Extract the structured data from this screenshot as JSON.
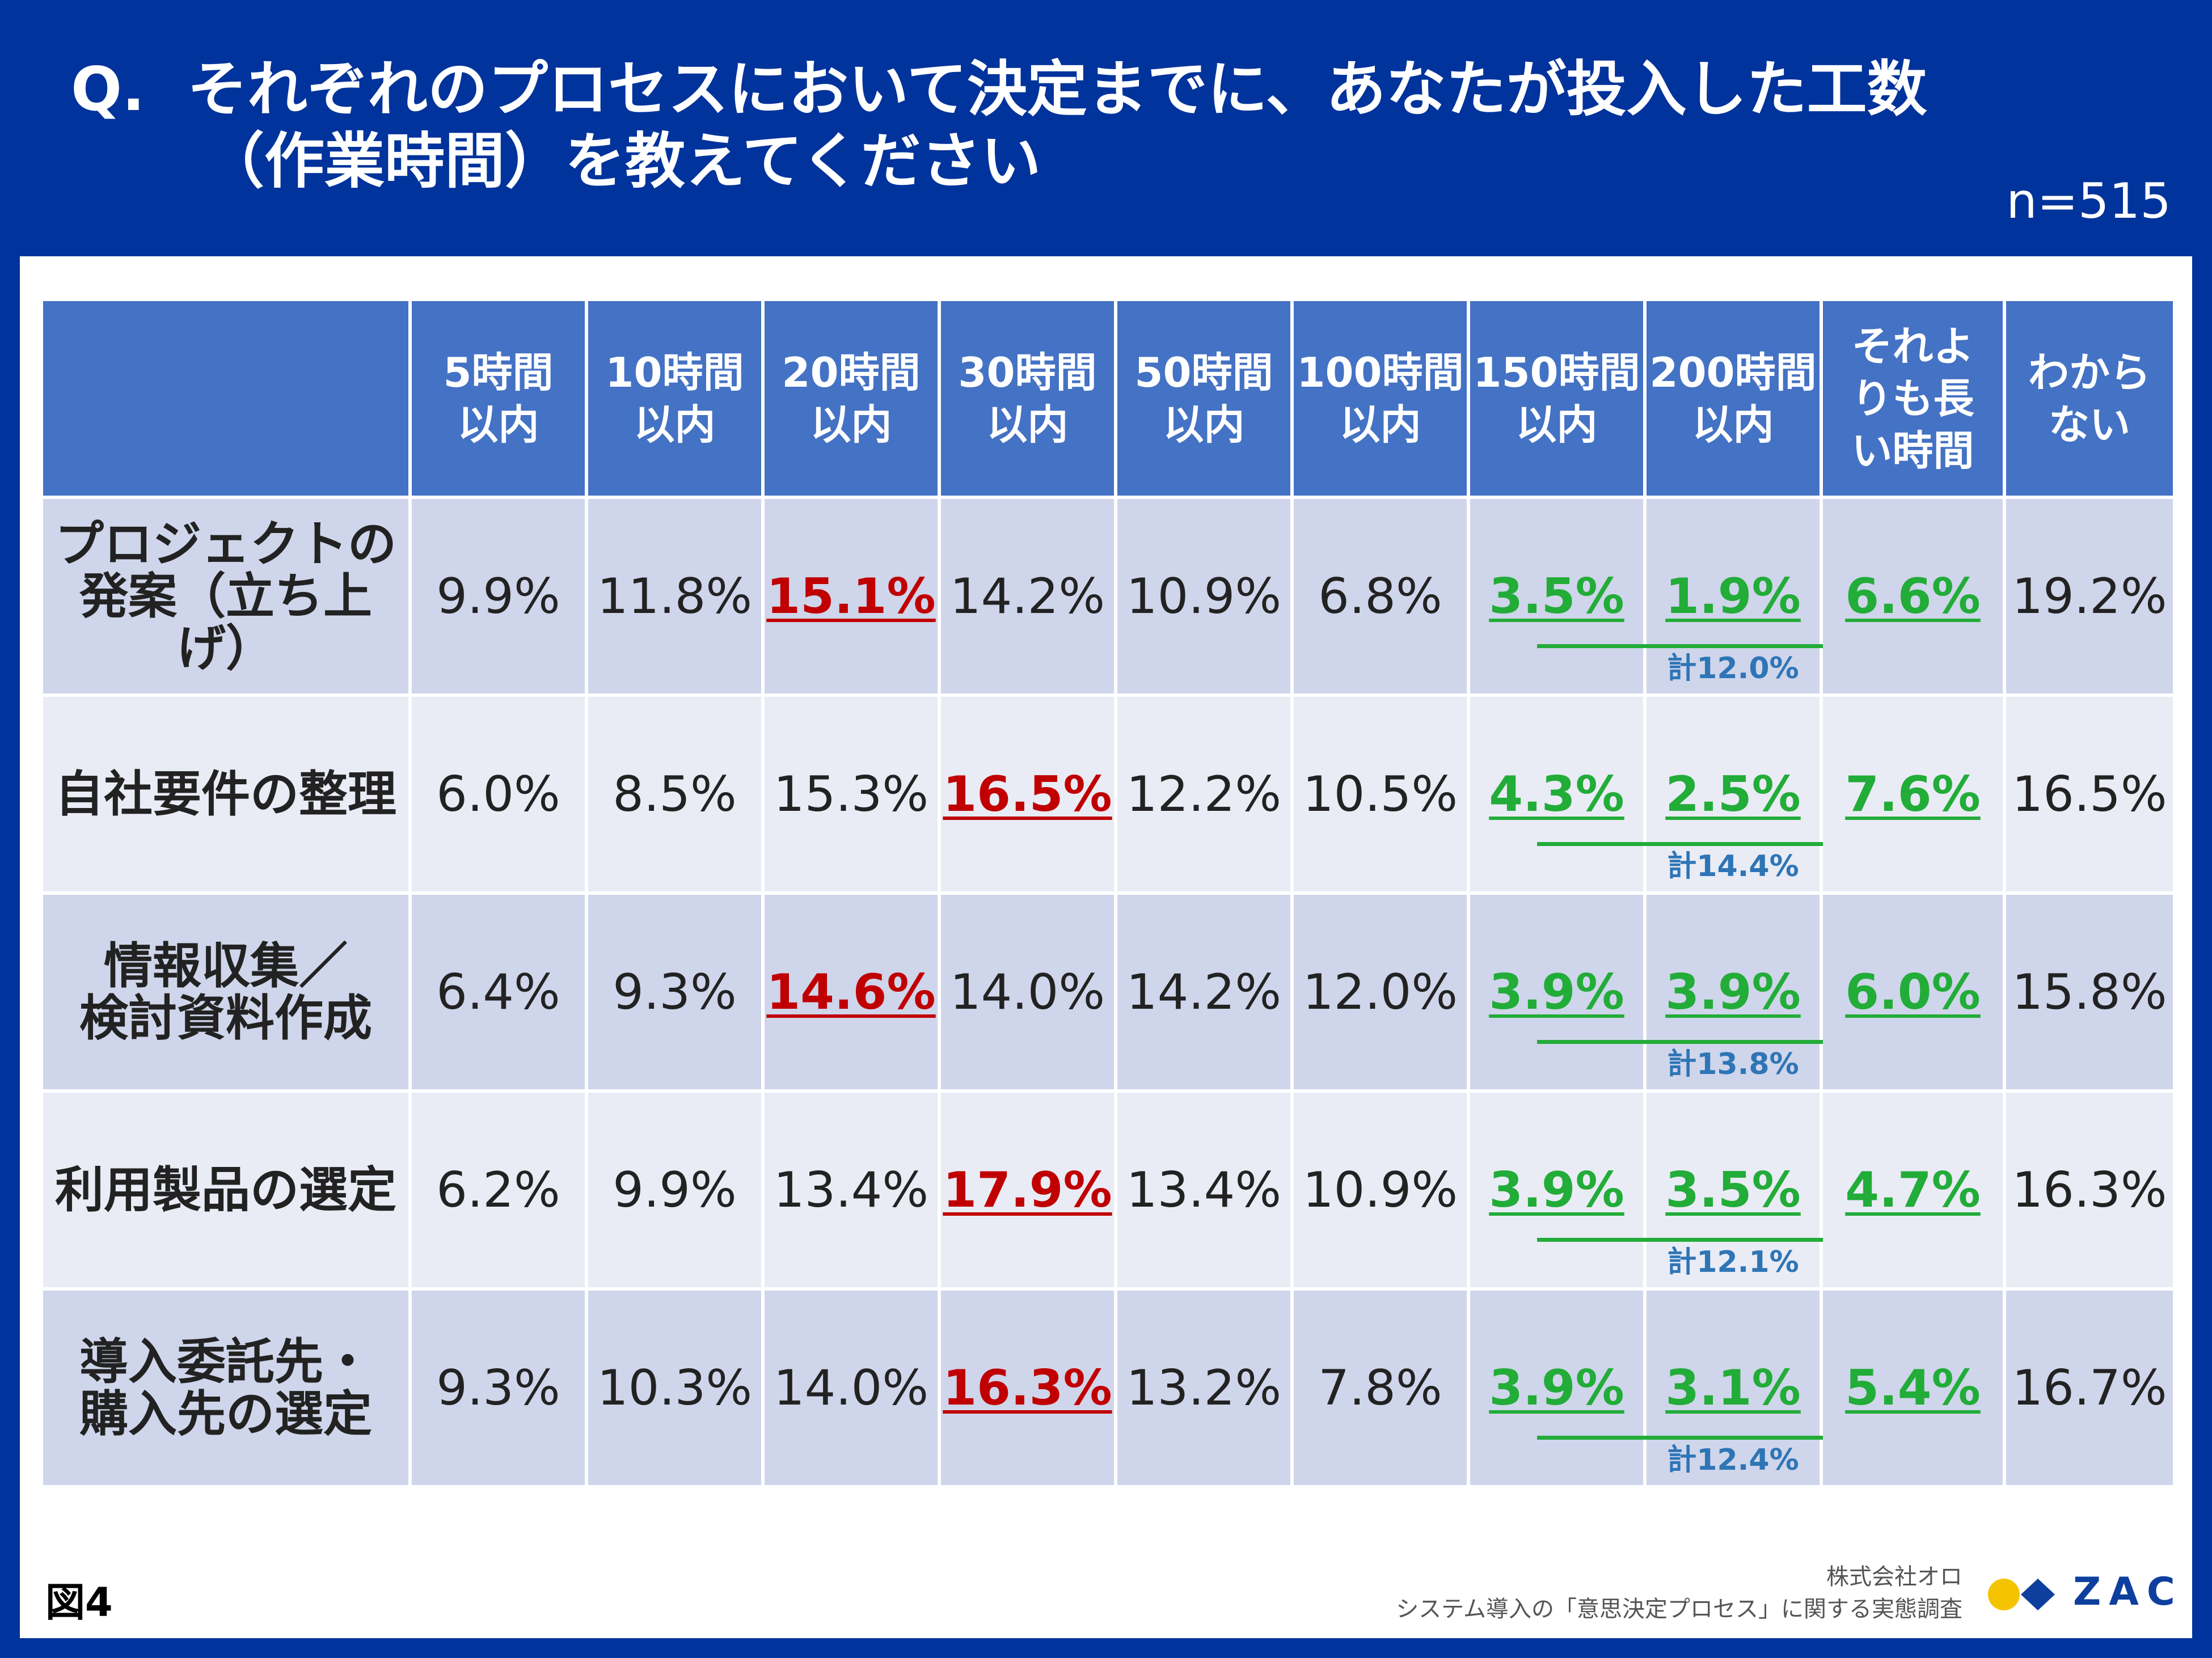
{
  "title": {
    "q": "Q.",
    "line1": "それぞれのプロセスにおいて決定までに、あなたが投入した工数",
    "line2": "（作業時間）を教えてください"
  },
  "n_label": "n=515",
  "chart_data": {
    "type": "table",
    "columns": [
      [
        "5時間",
        "以内"
      ],
      [
        "10時間",
        "以内"
      ],
      [
        "20時間",
        "以内"
      ],
      [
        "30時間",
        "以内"
      ],
      [
        "50時間",
        "以内"
      ],
      [
        "100時間",
        "以内"
      ],
      [
        "150時間",
        "以内"
      ],
      [
        "200時間",
        "以内"
      ],
      [
        "それよ",
        "りも長",
        "い時間"
      ],
      [
        "わから",
        "ない"
      ]
    ],
    "rows": [
      {
        "label": [
          "プロジェクトの",
          "発案（立ち上げ）"
        ],
        "values": [
          "9.9%",
          "11.8%",
          "15.1%",
          "14.2%",
          "10.9%",
          "6.8%",
          "3.5%",
          "1.9%",
          "6.6%",
          "19.2%"
        ],
        "max_index": 2,
        "total": "計12.0%"
      },
      {
        "label": [
          "自社要件の整理"
        ],
        "values": [
          "6.0%",
          "8.5%",
          "15.3%",
          "16.5%",
          "12.2%",
          "10.5%",
          "4.3%",
          "2.5%",
          "7.6%",
          "16.5%"
        ],
        "max_index": 3,
        "total": "計14.4%"
      },
      {
        "label": [
          "情報収集／",
          "検討資料作成"
        ],
        "values": [
          "6.4%",
          "9.3%",
          "14.6%",
          "14.0%",
          "14.2%",
          "12.0%",
          "3.9%",
          "3.9%",
          "6.0%",
          "15.8%"
        ],
        "max_index": 2,
        "total": "計13.8%"
      },
      {
        "label": [
          "利用製品の選定"
        ],
        "values": [
          "6.2%",
          "9.9%",
          "13.4%",
          "17.9%",
          "13.4%",
          "10.9%",
          "3.9%",
          "3.5%",
          "4.7%",
          "16.3%"
        ],
        "max_index": 3,
        "total": "計12.1%"
      },
      {
        "label": [
          "導入委託先・",
          "購入先の選定"
        ],
        "values": [
          "9.3%",
          "10.3%",
          "14.0%",
          "16.3%",
          "13.2%",
          "7.8%",
          "3.9%",
          "3.1%",
          "5.4%",
          "16.7%"
        ],
        "max_index": 3,
        "total": "計12.4%"
      }
    ],
    "highlight_columns": [
      6,
      7,
      8
    ],
    "colors": {
      "header": "#4472c4",
      "max": "#c00000",
      "long": "#22ac38",
      "total": "#2e75b6"
    }
  },
  "footer": {
    "figure": "図4",
    "company": "株式会社オロ",
    "survey": "システム導入の「意思決定プロセス」に関する実態調査",
    "logo_text": "ZAC"
  }
}
